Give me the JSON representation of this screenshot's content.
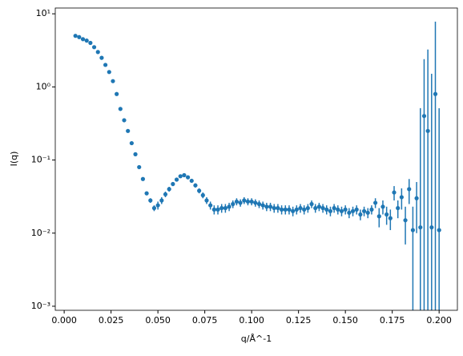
{
  "chart_data": {
    "type": "errorbar",
    "xlabel": "q/Å^-1",
    "ylabel": "I(q)",
    "yscale": "log",
    "color": "#1f77b4",
    "x": [
      0.006,
      0.008,
      0.01,
      0.012,
      0.014,
      0.016,
      0.018,
      0.02,
      0.022,
      0.024,
      0.026,
      0.028,
      0.03,
      0.032,
      0.034,
      0.036,
      0.038,
      0.04,
      0.042,
      0.044,
      0.046,
      0.048,
      0.05,
      0.052,
      0.054,
      0.056,
      0.058,
      0.06,
      0.062,
      0.064,
      0.066,
      0.068,
      0.07,
      0.072,
      0.074,
      0.076,
      0.078,
      0.08,
      0.082,
      0.084,
      0.086,
      0.088,
      0.09,
      0.092,
      0.094,
      0.096,
      0.098,
      0.1,
      0.102,
      0.104,
      0.106,
      0.108,
      0.11,
      0.112,
      0.114,
      0.116,
      0.118,
      0.12,
      0.122,
      0.124,
      0.126,
      0.128,
      0.13,
      0.132,
      0.134,
      0.136,
      0.138,
      0.14,
      0.142,
      0.144,
      0.146,
      0.148,
      0.15,
      0.152,
      0.154,
      0.156,
      0.158,
      0.16,
      0.162,
      0.164,
      0.166,
      0.168,
      0.17,
      0.172,
      0.174,
      0.176,
      0.178,
      0.18,
      0.182,
      0.184,
      0.186,
      0.188,
      0.19,
      0.192,
      0.194,
      0.196,
      0.198,
      0.2
    ],
    "values": [
      5.0,
      4.8,
      4.5,
      4.3,
      4.0,
      3.5,
      3.0,
      2.5,
      2.0,
      1.6,
      1.2,
      0.8,
      0.5,
      0.35,
      0.25,
      0.17,
      0.12,
      0.08,
      0.055,
      0.035,
      0.028,
      0.022,
      0.024,
      0.028,
      0.034,
      0.04,
      0.047,
      0.054,
      0.06,
      0.062,
      0.058,
      0.052,
      0.045,
      0.038,
      0.033,
      0.028,
      0.024,
      0.021,
      0.021,
      0.022,
      0.022,
      0.023,
      0.025,
      0.027,
      0.026,
      0.028,
      0.027,
      0.027,
      0.026,
      0.025,
      0.024,
      0.023,
      0.023,
      0.022,
      0.022,
      0.021,
      0.021,
      0.021,
      0.02,
      0.021,
      0.022,
      0.021,
      0.022,
      0.025,
      0.022,
      0.023,
      0.022,
      0.021,
      0.02,
      0.022,
      0.021,
      0.02,
      0.021,
      0.019,
      0.02,
      0.021,
      0.018,
      0.02,
      0.019,
      0.021,
      0.026,
      0.017,
      0.023,
      0.018,
      0.016,
      0.036,
      0.022,
      0.031,
      0.015,
      0.04,
      0.011,
      0.03,
      0.012,
      0.4,
      0.25,
      0.012,
      0.8,
      0.011
    ],
    "errors": [
      0.15,
      0.15,
      0.14,
      0.13,
      0.12,
      0.11,
      0.09,
      0.08,
      0.06,
      0.05,
      0.04,
      0.025,
      0.016,
      0.011,
      0.008,
      0.006,
      0.004,
      0.003,
      0.002,
      0.002,
      0.002,
      0.002,
      0.003,
      0.003,
      0.003,
      0.003,
      0.003,
      0.003,
      0.003,
      0.003,
      0.003,
      0.003,
      0.003,
      0.003,
      0.003,
      0.003,
      0.003,
      0.003,
      0.003,
      0.003,
      0.003,
      0.003,
      0.003,
      0.003,
      0.003,
      0.003,
      0.003,
      0.003,
      0.003,
      0.003,
      0.003,
      0.003,
      0.003,
      0.003,
      0.003,
      0.003,
      0.003,
      0.003,
      0.003,
      0.003,
      0.003,
      0.003,
      0.003,
      0.003,
      0.003,
      0.003,
      0.003,
      0.003,
      0.003,
      0.003,
      0.003,
      0.003,
      0.003,
      0.003,
      0.003,
      0.003,
      0.003,
      0.003,
      0.003,
      0.003,
      0.004,
      0.005,
      0.005,
      0.005,
      0.005,
      0.008,
      0.006,
      0.01,
      0.008,
      0.015,
      0.012,
      0.02,
      0.5,
      2,
      3,
      1.5,
      7,
      0.5
    ],
    "xlim": [
      -0.00475,
      0.20975
    ],
    "ylim": [
      0.00088,
      12
    ],
    "xticks": [
      {
        "value": 0,
        "label": "0.000"
      },
      {
        "value": 0.025,
        "label": "0.025"
      },
      {
        "value": 0.05,
        "label": "0.050"
      },
      {
        "value": 0.075,
        "label": "0.075"
      },
      {
        "value": 0.1,
        "label": "0.100"
      },
      {
        "value": 0.125,
        "label": "0.125"
      },
      {
        "value": 0.15,
        "label": "0.150"
      },
      {
        "value": 0.175,
        "label": "0.175"
      },
      {
        "value": 0.2,
        "label": "0.200"
      }
    ],
    "yticks": [
      {
        "value": 0.001,
        "label": "10⁻³"
      },
      {
        "value": 0.01,
        "label": "10⁻²"
      },
      {
        "value": 0.1,
        "label": "10⁻¹"
      },
      {
        "value": 1,
        "label": "10⁰"
      },
      {
        "value": 10,
        "label": "10¹"
      }
    ]
  }
}
